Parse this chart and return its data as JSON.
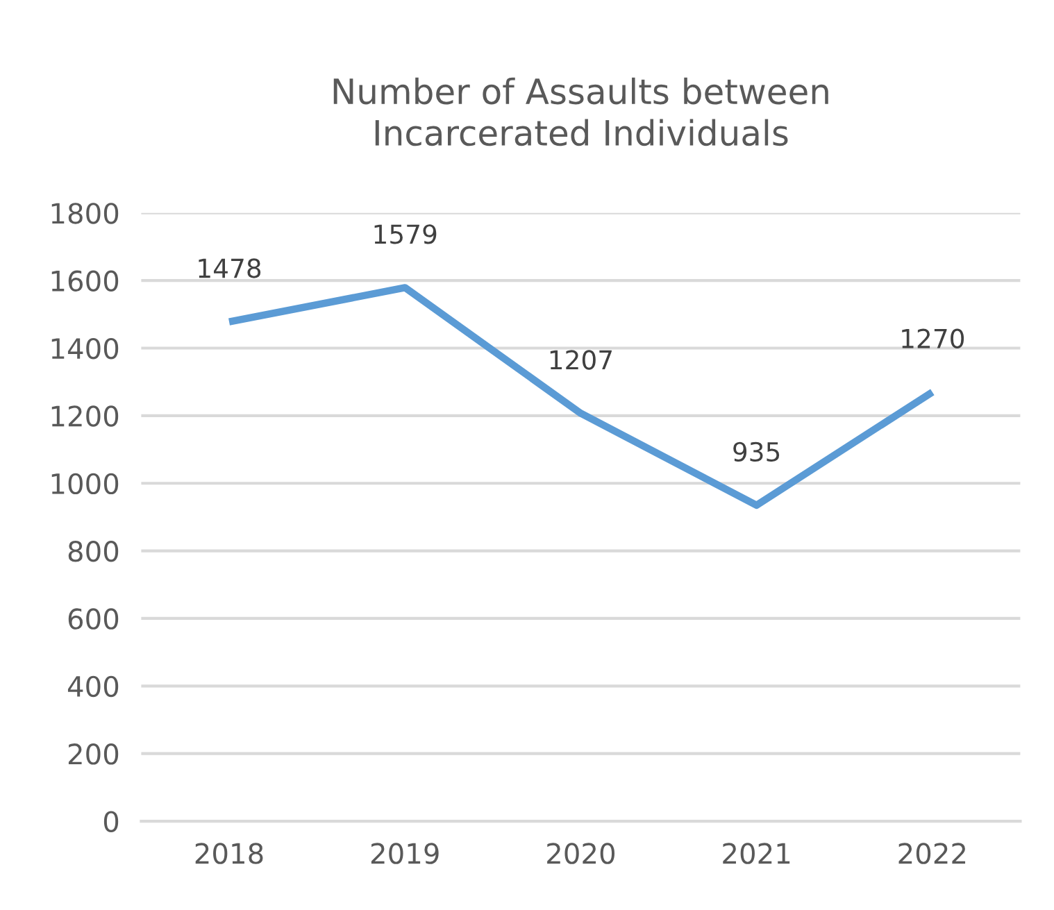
{
  "chart_data": {
    "type": "line",
    "title": "Number of Assaults between\nIncarcerated Individuals",
    "categories": [
      "2018",
      "2019",
      "2020",
      "2021",
      "2022"
    ],
    "series": [
      {
        "color": "#5b9bd5",
        "values": [
          1478,
          1579,
          1207,
          935,
          1270
        ]
      }
    ],
    "ylim": [
      0,
      1800
    ],
    "yticks": [
      0,
      200,
      400,
      600,
      800,
      1000,
      1200,
      1400,
      1600,
      1800
    ],
    "grid": "y",
    "data_labels": true,
    "legend": false,
    "marker": "none",
    "line_style": "solid"
  }
}
